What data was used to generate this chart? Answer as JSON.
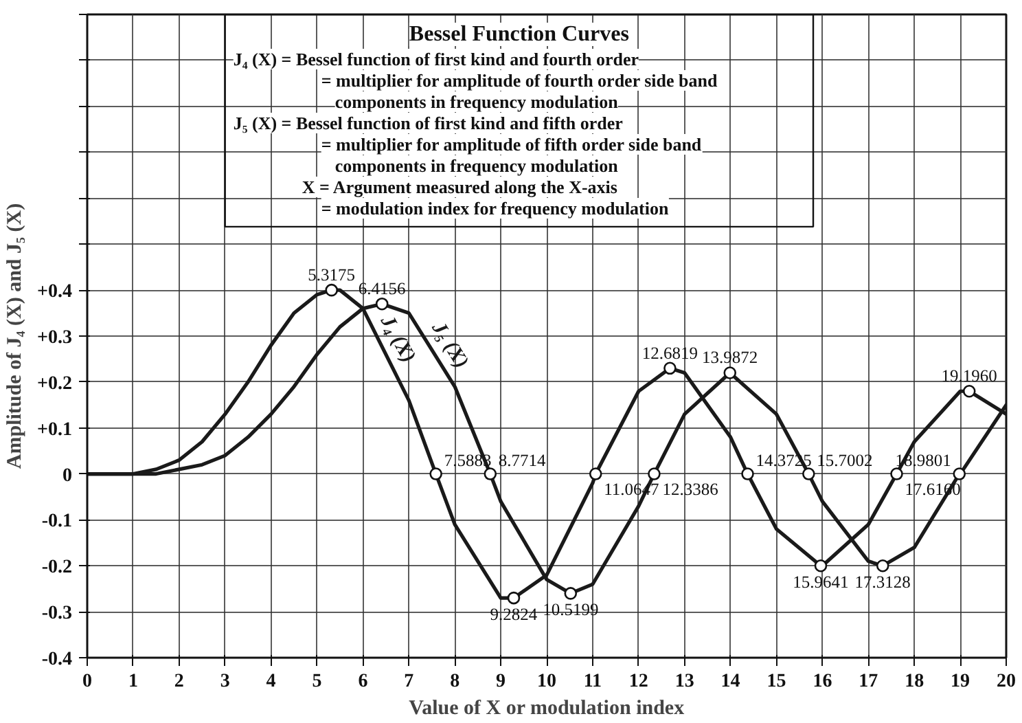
{
  "chart_data": {
    "type": "line",
    "title": "Bessel Function Curves",
    "xlabel": "Value of X or modulation index",
    "ylabel": "Amplitude of J₄ (X) and J₅ (X)",
    "xlim": [
      0,
      20
    ],
    "ylim": [
      -0.4,
      1.0
    ],
    "xticks": [
      0,
      1,
      2,
      3,
      4,
      5,
      6,
      7,
      8,
      9,
      10,
      11,
      12,
      13,
      14,
      15,
      16,
      17,
      18,
      19,
      20
    ],
    "yticks": [
      {
        "value": -0.4,
        "label": "-0.4"
      },
      -0.3,
      -0.2,
      -0.1,
      0,
      {
        "value": 0.1,
        "label": "+0.1"
      },
      {
        "value": 0.2,
        "label": "+0.2"
      },
      {
        "value": 0.3,
        "label": "+0.3"
      },
      {
        "value": 0.4,
        "label": "+0.4"
      },
      {
        "value": 0.5,
        "label": null
      },
      {
        "value": 0.6,
        "label": null
      },
      {
        "value": 0.7,
        "label": null
      },
      {
        "value": 0.8,
        "label": null
      },
      {
        "value": 0.9,
        "label": null
      },
      {
        "value": 1.0,
        "label": null
      }
    ],
    "grid": true,
    "series": [
      {
        "name": "J₄ (X)",
        "color": "#1a1a1a",
        "x": [
          0,
          0.5,
          1,
          1.5,
          2,
          2.5,
          3,
          3.5,
          4,
          4.5,
          5,
          5.3175,
          5.5,
          6,
          7,
          7.5883,
          8,
          9,
          9.2824,
          10,
          11,
          11.0647,
          12,
          12.6819,
          13,
          14,
          14.3725,
          15,
          15.9641,
          16,
          17,
          17.616,
          18,
          19,
          19.196,
          20
        ],
        "values": [
          0,
          0,
          0,
          0.01,
          0.03,
          0.07,
          0.13,
          0.2,
          0.28,
          0.35,
          0.39,
          0.4,
          0.4,
          0.36,
          0.16,
          0,
          -0.11,
          -0.27,
          -0.27,
          -0.22,
          -0.02,
          0,
          0.18,
          0.23,
          0.22,
          0.08,
          0,
          -0.12,
          -0.2,
          -0.2,
          -0.11,
          0,
          0.07,
          0.18,
          0.18,
          0.13
        ]
      },
      {
        "name": "J₅ (X)",
        "color": "#1a1a1a",
        "x": [
          0,
          1,
          1.5,
          2,
          2.5,
          3,
          3.5,
          4,
          4.5,
          5,
          5.5,
          6,
          6.4156,
          7,
          8,
          8.7714,
          9,
          10,
          10.5199,
          11,
          12,
          12.3386,
          13,
          13.9872,
          15,
          15.7002,
          16,
          17,
          17.3128,
          18,
          18.9801,
          19,
          20
        ],
        "values": [
          0,
          0,
          0,
          0.01,
          0.02,
          0.04,
          0.08,
          0.13,
          0.19,
          0.26,
          0.32,
          0.36,
          0.37,
          0.35,
          0.19,
          0,
          -0.06,
          -0.23,
          -0.26,
          -0.24,
          -0.07,
          0,
          0.13,
          0.22,
          0.13,
          0,
          -0.06,
          -0.19,
          -0.2,
          -0.16,
          0,
          0,
          0.15
        ]
      }
    ],
    "annotations": [
      "J₄ (X) = Bessel function of first kind and fourth order",
      "= multiplier for amplitude of fourth order side band",
      "components in frequency modulation",
      "J₅ (X) = Bessel function of first kind and fifth order",
      "= multiplier for amplitude of fifth order side band",
      "components in frequency modulation",
      "X = Argument measured along the X-axis",
      "= modulation index for frequency modulation",
      {
        "text": "5.3175",
        "x": 5.3175,
        "y": 0.4
      },
      {
        "text": "6.4156",
        "x": 6.4156,
        "y": 0.37
      },
      {
        "text": "7.5883",
        "x": 7.5883,
        "y": 0
      },
      {
        "text": "8.7714",
        "x": 8.7714,
        "y": 0
      },
      {
        "text": "9.2824",
        "x": 9.2824,
        "y": -0.27
      },
      {
        "text": "10.5199",
        "x": 10.5199,
        "y": -0.26
      },
      {
        "text": "11.0647",
        "x": 11.0647,
        "y": 0
      },
      {
        "text": "12.3386",
        "x": 12.3386,
        "y": 0
      },
      {
        "text": "12.6819",
        "x": 12.6819,
        "y": 0.23
      },
      {
        "text": "13.9872",
        "x": 13.9872,
        "y": 0.22
      },
      {
        "text": "14.3725",
        "x": 14.3725,
        "y": 0
      },
      {
        "text": "15.7002",
        "x": 15.7002,
        "y": 0
      },
      {
        "text": "15.9641",
        "x": 15.9641,
        "y": -0.2
      },
      {
        "text": "17.3128",
        "x": 17.3128,
        "y": -0.2
      },
      {
        "text": "17.6160",
        "x": 17.616,
        "y": 0
      },
      {
        "text": "18.9801",
        "x": 18.9801,
        "y": 0
      },
      {
        "text": "19.1960",
        "x": 19.196,
        "y": 0.18
      }
    ]
  }
}
